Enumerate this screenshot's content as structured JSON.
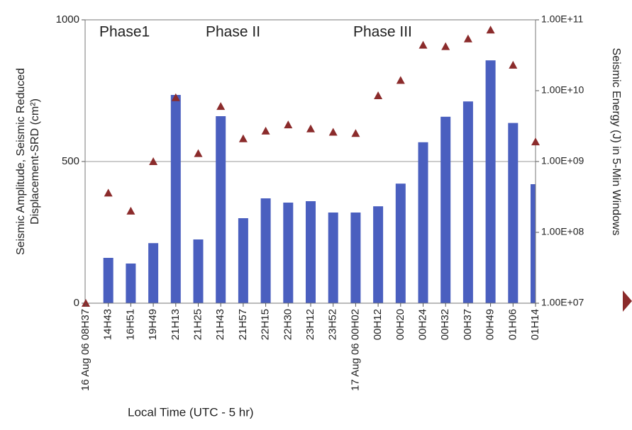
{
  "chart_data": {
    "type": "bar_line",
    "ylabel": [
      "Seismic Amplitude, Seismic Reduced",
      "Displacement-SRD (cm²)"
    ],
    "y2label": "Seismic Energy (J) in 5-Min Windows",
    "xlabel": "Local Time (UTC - 5 hr)",
    "annotations": [
      "Phase1",
      "Phase II",
      "Phase III"
    ],
    "categories": [
      "16 Aug 06 08H37",
      "14H43",
      "16H51",
      "19H49",
      "21H13",
      "21H25",
      "21H43",
      "21H57",
      "22H15",
      "22H30",
      "23H12",
      "23H52",
      "17 Aug 06 00H02",
      "00H12",
      "00H20",
      "00H24",
      "00H32",
      "00H37",
      "00H49",
      "01H06",
      "01H14"
    ],
    "series": [
      {
        "type": "bar",
        "color": "#4a5fbf",
        "values": [
          null,
          160,
          140,
          212,
          735,
          225,
          660,
          300,
          370,
          355,
          360,
          320,
          320,
          342,
          422,
          568,
          658,
          712,
          857,
          636,
          420
        ]
      },
      {
        "type": "line",
        "axis": "y2",
        "color": "#8b2b2b",
        "values": [
          10000000,
          360000000,
          200000000,
          1000000000,
          8000000000,
          1300000000,
          6000000000,
          2100000000,
          2700000000,
          3300000000,
          2900000000,
          2600000000,
          2500000000,
          8500000000,
          14000000000,
          44000000000,
          42000000000,
          54000000000,
          72000000000,
          23000000000,
          1900000000
        ]
      }
    ],
    "ylim": [
      0,
      1000
    ],
    "yticks": [
      0,
      500,
      1000
    ],
    "y2lim": [
      10000000,
      100000000000
    ],
    "y2log": true,
    "y2ticks": [
      {
        "value": 10000000,
        "label": "1.00E+07"
      },
      {
        "value": 100000000,
        "label": "1.00E+08"
      },
      {
        "value": 1000000000,
        "label": "1.00E+09"
      },
      {
        "value": 10000000000,
        "label": "1.00E+10"
      },
      {
        "value": 100000000000,
        "label": "1.00E+11"
      }
    ],
    "grid": true
  }
}
